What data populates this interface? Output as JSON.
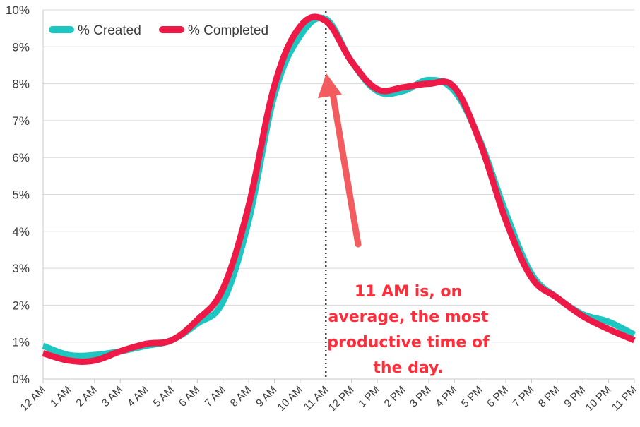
{
  "chart_data": {
    "type": "line",
    "title": "",
    "xlabel": "",
    "ylabel": "",
    "categories": [
      "12 AM",
      "1 AM",
      "2 AM",
      "3 AM",
      "4 AM",
      "5 AM",
      "6 AM",
      "7 AM",
      "8 AM",
      "9 AM",
      "10 AM",
      "11 AM",
      "12 PM",
      "1 PM",
      "2 PM",
      "3 PM",
      "4 PM",
      "5 PM",
      "6 PM",
      "7 PM",
      "8 PM",
      "9 PM",
      "10 PM",
      "11 PM"
    ],
    "ylim": [
      0,
      10
    ],
    "yticks": [
      "0%",
      "1%",
      "2%",
      "3%",
      "4%",
      "5%",
      "6%",
      "7%",
      "8%",
      "9%",
      "10%"
    ],
    "grid": "horizontal",
    "legend_position": "top-left",
    "series": [
      {
        "name": "% Created",
        "color": "#1cc7c1",
        "values": [
          0.9,
          0.65,
          0.65,
          0.75,
          0.9,
          1.05,
          1.5,
          2.1,
          4.3,
          7.7,
          9.3,
          9.75,
          8.6,
          7.8,
          7.8,
          8.1,
          7.8,
          6.45,
          4.5,
          2.85,
          2.2,
          1.75,
          1.55,
          1.2
        ]
      },
      {
        "name": "% Completed",
        "color": "#ee1947",
        "values": [
          0.7,
          0.5,
          0.5,
          0.75,
          0.95,
          1.05,
          1.6,
          2.45,
          4.7,
          7.95,
          9.55,
          9.7,
          8.6,
          7.85,
          7.9,
          8.0,
          7.9,
          6.4,
          4.3,
          2.75,
          2.2,
          1.7,
          1.35,
          1.05
        ]
      }
    ],
    "reference_line": {
      "category": "11 AM",
      "style": "dotted"
    },
    "annotation": {
      "lines": [
        "11 AM is, on",
        "average, the most",
        "productive time of",
        "the day."
      ],
      "color": "#ff2d3a"
    }
  }
}
